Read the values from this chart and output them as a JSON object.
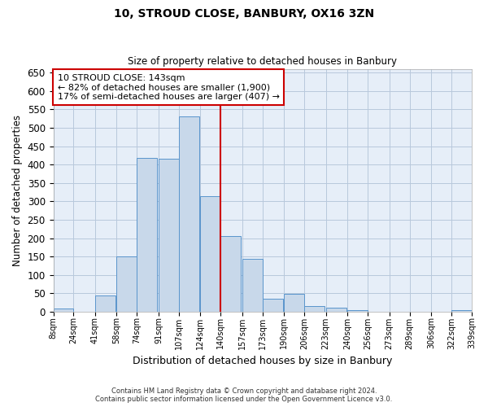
{
  "title": "10, STROUD CLOSE, BANBURY, OX16 3ZN",
  "subtitle": "Size of property relative to detached houses in Banbury",
  "xlabel": "Distribution of detached houses by size in Banbury",
  "ylabel": "Number of detached properties",
  "bar_left_edges": [
    8,
    24,
    41,
    58,
    74,
    91,
    107,
    124,
    140,
    157,
    173,
    190,
    206,
    223,
    240,
    256,
    273,
    289,
    306,
    322
  ],
  "bar_heights": [
    8,
    0,
    44,
    150,
    418,
    416,
    530,
    315,
    205,
    143,
    35,
    48,
    15,
    12,
    5,
    0,
    0,
    0,
    0,
    5
  ],
  "bar_color": "#c8d8ea",
  "bar_edge_color": "#5a95cc",
  "vline_x": 140,
  "vline_color": "#cc0000",
  "ylim": [
    0,
    660
  ],
  "yticks": [
    0,
    50,
    100,
    150,
    200,
    250,
    300,
    350,
    400,
    450,
    500,
    550,
    600,
    650
  ],
  "xtick_labels": [
    "8sqm",
    "24sqm",
    "41sqm",
    "58sqm",
    "74sqm",
    "91sqm",
    "107sqm",
    "124sqm",
    "140sqm",
    "157sqm",
    "173sqm",
    "190sqm",
    "206sqm",
    "223sqm",
    "240sqm",
    "256sqm",
    "273sqm",
    "289sqm",
    "306sqm",
    "322sqm",
    "339sqm"
  ],
  "annotation_title": "10 STROUD CLOSE: 143sqm",
  "annotation_line1": "← 82% of detached houses are smaller (1,900)",
  "annotation_line2": "17% of semi-detached houses are larger (407) →",
  "footer1": "Contains HM Land Registry data © Crown copyright and database right 2024.",
  "footer2": "Contains public sector information licensed under the Open Government Licence v3.0.",
  "background_color": "#ffffff",
  "plot_bg_color": "#e6eef8",
  "grid_color": "#b8c8dc",
  "fig_width": 6.0,
  "fig_height": 5.0
}
